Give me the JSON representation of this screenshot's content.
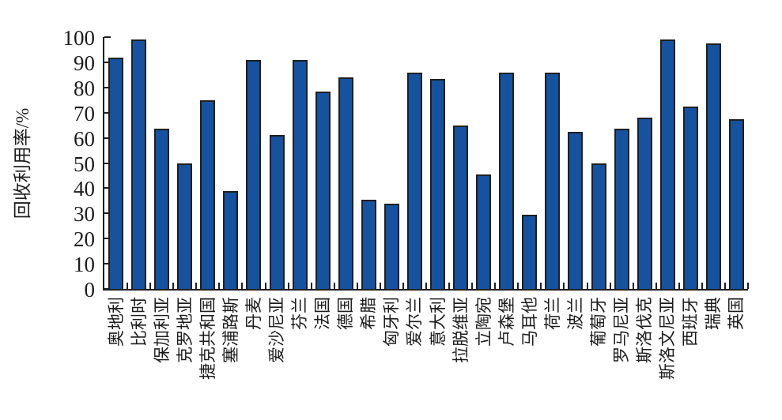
{
  "chart_data": {
    "type": "bar",
    "title": "",
    "xlabel": "",
    "ylabel": "回收利用率/%",
    "ylim": [
      0,
      100
    ],
    "yticks": [
      0,
      10,
      20,
      30,
      40,
      50,
      60,
      70,
      80,
      90,
      100
    ],
    "grid": false,
    "legend": null,
    "bar_color": "#1552a0",
    "bar_border_color": "#1f1f1f",
    "categories": [
      "奥地利",
      "比利时",
      "保加利亚",
      "克罗地亚",
      "捷克共和国",
      "塞浦路斯",
      "丹麦",
      "爱沙尼亚",
      "芬兰",
      "法国",
      "德国",
      "希腊",
      "匈牙利",
      "爱尔兰",
      "意大利",
      "拉脱维亚",
      "立陶宛",
      "卢森堡",
      "马耳他",
      "荷兰",
      "波兰",
      "葡萄牙",
      "罗马尼亚",
      "斯洛伐克",
      "斯洛文尼亚",
      "西班牙",
      "瑞典",
      "英国"
    ],
    "values": [
      92,
      99,
      63.5,
      50,
      75,
      39,
      91,
      61,
      91,
      78.5,
      84,
      35.5,
      34,
      86,
      83.5,
      65,
      45.5,
      86,
      29.5,
      86,
      62.5,
      50,
      63.5,
      68,
      99,
      72.5,
      97.5,
      67.5
    ]
  }
}
